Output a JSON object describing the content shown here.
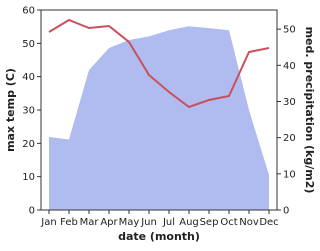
{
  "chart_data": {
    "type": "line",
    "x_label": "date (month)",
    "y_label": "max temp (C)",
    "y2_label": "med. precipitation (kg/m2)",
    "categories": [
      "Jan",
      "Feb",
      "Mar",
      "Apr",
      "May",
      "Jun",
      "Jul",
      "Aug",
      "Sep",
      "Oct",
      "Nov",
      "Dec"
    ],
    "series": [
      {
        "name": "med. precipitation",
        "kind": "area",
        "axis": "y2",
        "color": "#b0bbf0",
        "values": [
          20.2,
          19.5,
          38.7,
          44.8,
          47,
          48,
          49.7,
          50.8,
          50.3,
          49.7,
          27.6,
          9.7
        ]
      },
      {
        "name": "max temp",
        "kind": "line",
        "axis": "y",
        "color": "#c9505b",
        "values": [
          53.4,
          57,
          54.6,
          55.2,
          50.4,
          40.5,
          35.4,
          30.9,
          33,
          34.2,
          47.4,
          48.6
        ]
      }
    ],
    "ylim": [
      0,
      60
    ],
    "yticks": [
      0,
      10,
      20,
      30,
      40,
      50,
      60
    ],
    "y2lim": [
      0,
      55.3
    ],
    "y2ticks": [
      0,
      10,
      20,
      30,
      40,
      50
    ]
  }
}
